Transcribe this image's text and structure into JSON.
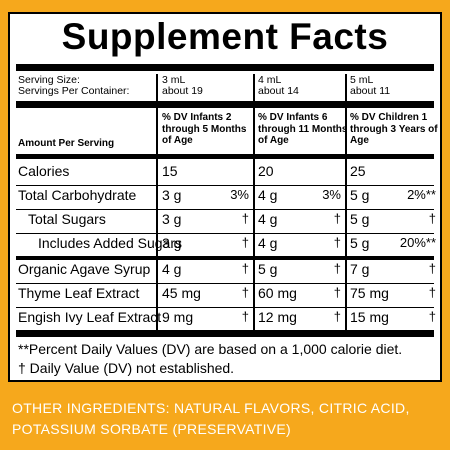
{
  "title": "Supplement Facts",
  "serving": {
    "size_label": "Serving Size:",
    "per_container_label": "Servings Per Container:",
    "columns": [
      {
        "size": "3 mL",
        "servings": "about 19"
      },
      {
        "size": "4 mL",
        "servings": "about 14"
      },
      {
        "size": "5 mL",
        "servings": "about 11"
      }
    ]
  },
  "header": {
    "amount_label": "Amount Per Serving",
    "dv": [
      "% DV Infants 2 through 5 Months of Age",
      "% DV Infants 6 through 11 Months of Age",
      "% DV Children 1 through 3 Years of Age"
    ]
  },
  "nutrients": [
    {
      "name": "Calories",
      "indent": 0,
      "vals": [
        {
          "amt": "15",
          "dv": ""
        },
        {
          "amt": "20",
          "dv": ""
        },
        {
          "amt": "25",
          "dv": ""
        }
      ]
    },
    {
      "name": "Total Carbohydrate",
      "indent": 0,
      "vals": [
        {
          "amt": "3 g",
          "dv": "3%"
        },
        {
          "amt": "4 g",
          "dv": "3%"
        },
        {
          "amt": "5 g",
          "dv": "2%**"
        }
      ]
    },
    {
      "name": "Total Sugars",
      "indent": 1,
      "vals": [
        {
          "amt": "3 g",
          "dv": "†"
        },
        {
          "amt": "4 g",
          "dv": "†"
        },
        {
          "amt": "5 g",
          "dv": "†"
        }
      ]
    },
    {
      "name": "Includes Added Sugars",
      "indent": 2,
      "vals": [
        {
          "amt": "3 g",
          "dv": "†"
        },
        {
          "amt": "4 g",
          "dv": "†"
        },
        {
          "amt": "5 g",
          "dv": "20%**"
        }
      ]
    },
    {
      "name": "Organic Agave Syrup",
      "indent": 0,
      "vals": [
        {
          "amt": "4 g",
          "dv": "†"
        },
        {
          "amt": "5 g",
          "dv": "†"
        },
        {
          "amt": "7 g",
          "dv": "†"
        }
      ]
    },
    {
      "name": "Thyme Leaf Extract",
      "indent": 0,
      "vals": [
        {
          "amt": "45 mg",
          "dv": "†"
        },
        {
          "amt": "60 mg",
          "dv": "†"
        },
        {
          "amt": "75 mg",
          "dv": "†"
        }
      ]
    },
    {
      "name": "Engish Ivy Leaf Extract",
      "indent": 0,
      "vals": [
        {
          "amt": "9 mg",
          "dv": "†"
        },
        {
          "amt": "12 mg",
          "dv": "†"
        },
        {
          "amt": "15 mg",
          "dv": "†"
        }
      ]
    }
  ],
  "footnotes": [
    "**Percent Daily Values (DV) are based on a 1,000 calorie diet.",
    "† Daily Value (DV) not established."
  ],
  "other_ingredients": "OTHER INGREDIENTS: NATURAL FLAVORS, CITRIC ACID, POTASSIUM SORBATE (PRESERVATIVE)",
  "colors": {
    "background": "#f6a81c",
    "panel": "#ffffff",
    "ink": "#000000",
    "ingredients_text": "#ffffff"
  }
}
